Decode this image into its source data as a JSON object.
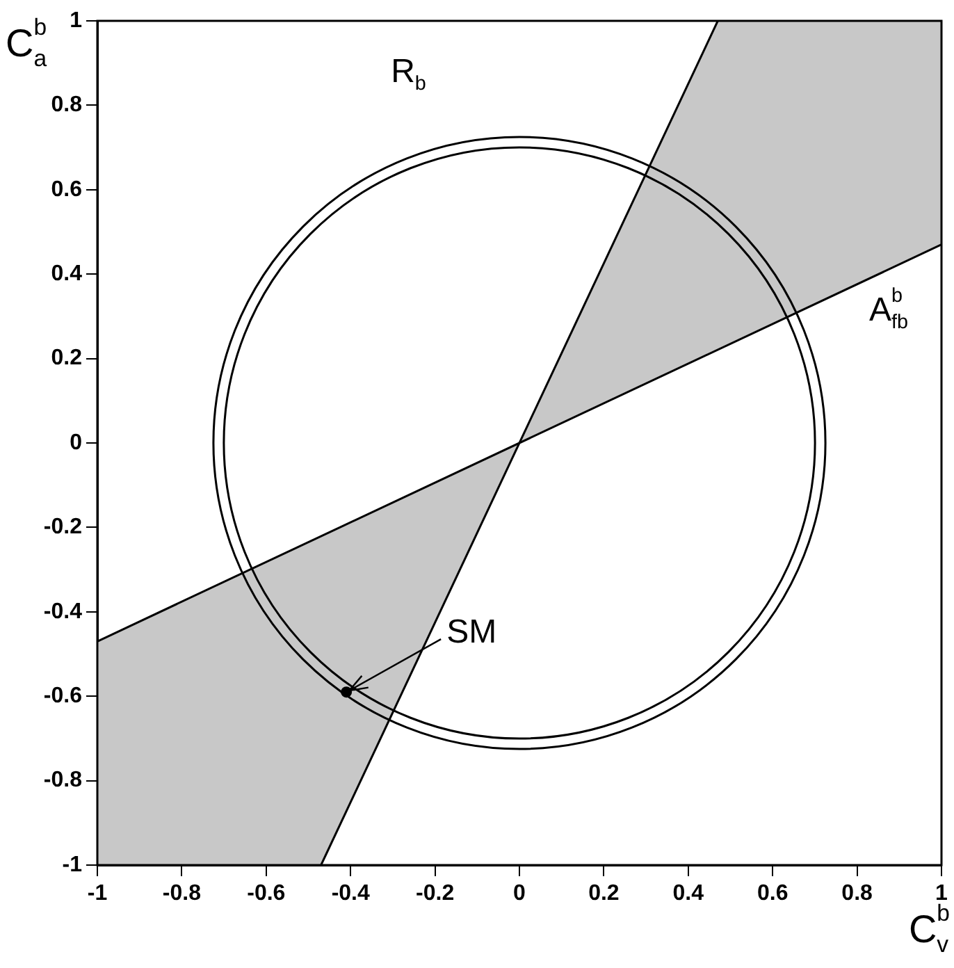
{
  "chart_data": {
    "type": "line",
    "xlabel": "C$_{v}$$^{b}$",
    "ylabel": "C$_{a}$$^{b}$",
    "xlim": [
      -1,
      1
    ],
    "ylim": [
      -1,
      1
    ],
    "xticks": [
      -1,
      -0.8,
      -0.6,
      -0.4,
      -0.2,
      0,
      0.2,
      0.4,
      0.6,
      0.8,
      1
    ],
    "yticks": [
      -1,
      -0.8,
      -0.6,
      -0.4,
      -0.2,
      0,
      0.2,
      0.4,
      0.6,
      0.8,
      1
    ],
    "grid": false,
    "legend": false,
    "marker": "none",
    "line_style": "solid",
    "series": [
      {
        "type": "area",
        "color": "#c8c8c8",
        "x": [
          -1,
          -1,
          0,
          -0.47,
          -1
        ],
        "values": [
          -1,
          -0.47,
          0,
          -1,
          -1
        ]
      },
      {
        "type": "area",
        "color": "#c8c8c8",
        "x": [
          1,
          1,
          0,
          0.47,
          1
        ],
        "values": [
          1,
          0.47,
          0,
          1,
          1
        ]
      },
      {
        "name": "A$^{b}$$_{fb}$",
        "color": "#000000",
        "x": [
          -1,
          1
        ],
        "values": [
          -0.47,
          0.47
        ]
      },
      {
        "color": "#000000",
        "x": [
          -0.47,
          0.47
        ],
        "values": [
          -1,
          1
        ]
      },
      {
        "type": "scatter",
        "marker": "circle",
        "color": "#000000",
        "x": [
          -0.41
        ],
        "values": [
          -0.59
        ]
      }
    ],
    "annotations": [
      {
        "text": "SM",
        "x": -0.41,
        "y": -0.59
      },
      "R$_{b}$"
    ]
  }
}
